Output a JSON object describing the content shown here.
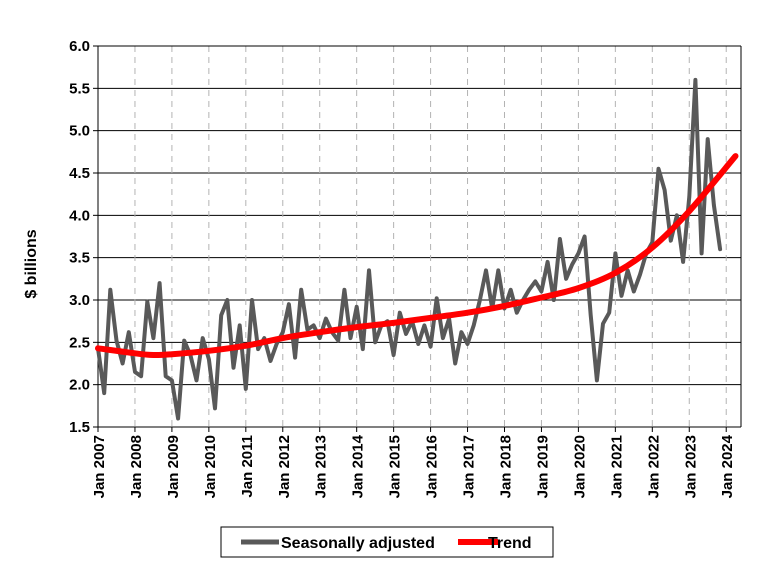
{
  "chart_data": {
    "type": "line",
    "title": "",
    "xlabel": "",
    "ylabel": "$ billions",
    "ylim": [
      1.5,
      6.0
    ],
    "yticks": [
      "1.5",
      "2.0",
      "2.5",
      "3.0",
      "3.5",
      "4.0",
      "4.5",
      "5.0",
      "5.5",
      "6.0"
    ],
    "xticks": [
      "Jan 2007",
      "Jan 2008",
      "Jan 2009",
      "Jan 2010",
      "Jan 2011",
      "Jan 2012",
      "Jan 2013",
      "Jan 2014",
      "Jan 2015",
      "Jan 2016",
      "Jan 2017",
      "Jan 2018",
      "Jan 2019",
      "Jan 2020",
      "Jan 2021",
      "Jan 2022",
      "Jan 2023",
      "Jan 2024"
    ],
    "grid": {
      "horizontal": "solid",
      "vertical": "dashed"
    },
    "legend_position": "bottom",
    "series": [
      {
        "name": "Seasonally adjusted",
        "color": "#595959",
        "x": [
          "2007-01",
          "2007-03",
          "2007-05",
          "2007-07",
          "2007-09",
          "2007-11",
          "2008-01",
          "2008-03",
          "2008-05",
          "2008-07",
          "2008-09",
          "2008-11",
          "2009-01",
          "2009-03",
          "2009-05",
          "2009-07",
          "2009-09",
          "2009-11",
          "2010-01",
          "2010-03",
          "2010-05",
          "2010-07",
          "2010-09",
          "2010-11",
          "2011-01",
          "2011-03",
          "2011-05",
          "2011-07",
          "2011-09",
          "2011-11",
          "2012-01",
          "2012-03",
          "2012-05",
          "2012-07",
          "2012-09",
          "2012-11",
          "2013-01",
          "2013-03",
          "2013-05",
          "2013-07",
          "2013-09",
          "2013-11",
          "2014-01",
          "2014-03",
          "2014-05",
          "2014-07",
          "2014-09",
          "2014-11",
          "2015-01",
          "2015-03",
          "2015-05",
          "2015-07",
          "2015-09",
          "2015-11",
          "2016-01",
          "2016-03",
          "2016-05",
          "2016-07",
          "2016-09",
          "2016-11",
          "2017-01",
          "2017-03",
          "2017-05",
          "2017-07",
          "2017-09",
          "2017-11",
          "2018-01",
          "2018-03",
          "2018-05",
          "2018-07",
          "2018-09",
          "2018-11",
          "2019-01",
          "2019-03",
          "2019-05",
          "2019-07",
          "2019-09",
          "2019-11",
          "2020-01",
          "2020-03",
          "2020-05",
          "2020-07",
          "2020-09",
          "2020-11",
          "2021-01",
          "2021-03",
          "2021-05",
          "2021-07",
          "2021-09",
          "2021-11",
          "2022-01",
          "2022-03",
          "2022-05",
          "2022-07",
          "2022-09",
          "2022-11",
          "2023-01",
          "2023-03",
          "2023-05",
          "2023-07",
          "2023-09",
          "2023-11"
        ],
        "values": [
          2.43,
          1.9,
          3.12,
          2.52,
          2.25,
          2.62,
          2.15,
          2.1,
          2.98,
          2.55,
          3.2,
          2.1,
          2.05,
          1.6,
          2.52,
          2.35,
          2.05,
          2.55,
          2.3,
          1.72,
          2.82,
          3.0,
          2.2,
          2.7,
          1.95,
          3.0,
          2.42,
          2.55,
          2.28,
          2.48,
          2.62,
          2.95,
          2.32,
          3.12,
          2.65,
          2.7,
          2.55,
          2.78,
          2.62,
          2.52,
          3.12,
          2.55,
          2.92,
          2.42,
          3.35,
          2.5,
          2.7,
          2.75,
          2.35,
          2.85,
          2.6,
          2.75,
          2.48,
          2.7,
          2.45,
          3.02,
          2.55,
          2.78,
          2.25,
          2.62,
          2.48,
          2.7,
          3.0,
          3.35,
          2.9,
          3.35,
          2.9,
          3.12,
          2.85,
          3.0,
          3.12,
          3.22,
          3.1,
          3.45,
          3.0,
          3.72,
          3.25,
          3.42,
          3.55,
          3.75,
          2.82,
          2.05,
          2.72,
          2.85,
          3.55,
          3.05,
          3.35,
          3.1,
          3.3,
          3.55,
          3.68,
          4.55,
          4.3,
          3.7,
          4.0,
          3.45,
          4.22,
          5.6,
          3.55,
          4.9,
          4.12,
          3.6
        ]
      },
      {
        "name": "Trend",
        "color": "#ff0000",
        "x": [
          "2007-01",
          "2008-01",
          "2008-07",
          "2009-01",
          "2010-01",
          "2011-01",
          "2012-01",
          "2013-01",
          "2014-01",
          "2015-01",
          "2016-01",
          "2017-01",
          "2018-01",
          "2019-01",
          "2020-01",
          "2021-01",
          "2022-01",
          "2023-01",
          "2024-04"
        ],
        "values": [
          2.43,
          2.37,
          2.35,
          2.36,
          2.4,
          2.46,
          2.55,
          2.62,
          2.68,
          2.73,
          2.79,
          2.85,
          2.93,
          3.03,
          3.14,
          3.32,
          3.62,
          4.05,
          4.7
        ]
      }
    ]
  }
}
